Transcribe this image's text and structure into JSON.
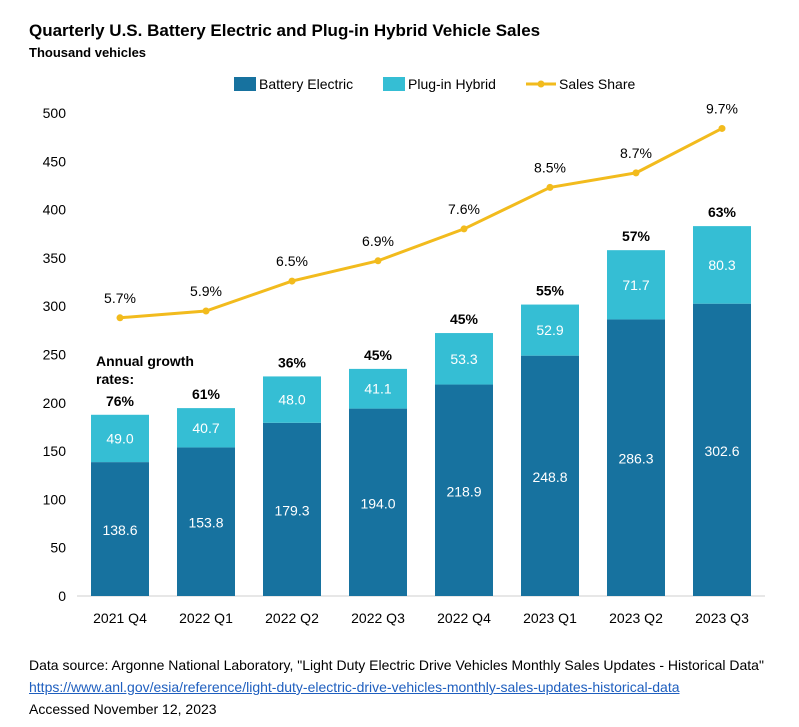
{
  "title": "Quarterly U.S. Battery Electric and Plug-in Hybrid Vehicle Sales",
  "subtitle": "Thousand vehicles",
  "colors": {
    "bev": "#17729f",
    "phev": "#35bed4",
    "share": "#f2bb1d",
    "axis": "#cfcfcf"
  },
  "chart_data": {
    "type": "bar",
    "stacked": true,
    "categories": [
      "2021 Q4",
      "2022 Q1",
      "2022 Q2",
      "2022 Q3",
      "2022 Q4",
      "2023 Q1",
      "2023 Q2",
      "2023 Q3"
    ],
    "series": [
      {
        "name": "Battery Electric",
        "values": [
          138.6,
          153.8,
          179.3,
          194.0,
          218.9,
          248.8,
          286.3,
          302.6
        ],
        "labels": [
          "138.6",
          "153.8",
          "179.3",
          "194.0",
          "218.9",
          "248.8",
          "286.3",
          "302.6"
        ]
      },
      {
        "name": "Plug-in Hybrid",
        "values": [
          49.0,
          40.7,
          48.0,
          41.1,
          53.3,
          52.9,
          71.7,
          80.3
        ],
        "labels": [
          "49.0",
          "40.7",
          "48.0",
          "41.1",
          "53.3",
          "52.9",
          "71.7",
          "80.3"
        ]
      }
    ],
    "line_series": {
      "name": "Sales Share",
      "values": [
        5.7,
        5.9,
        6.5,
        6.9,
        7.6,
        8.5,
        8.7,
        9.7
      ],
      "labels": [
        "5.7%",
        "5.9%",
        "6.5%",
        "6.9%",
        "7.6%",
        "8.5%",
        "8.7%",
        "9.7%"
      ],
      "plot_as_thousand_vehicles": [
        288,
        295,
        326,
        347,
        380,
        423,
        438,
        484
      ]
    },
    "growth_label": "Annual growth rates:",
    "growth_rates": [
      "76%",
      "61%",
      "36%",
      "45%",
      "45%",
      "55%",
      "57%",
      "63%"
    ],
    "y_ticks": [
      0,
      50,
      100,
      150,
      200,
      250,
      300,
      350,
      400,
      450,
      500
    ],
    "ylim": [
      0,
      500
    ],
    "legend_position": "top"
  },
  "footer": {
    "source": "Data source: Argonne National Laboratory, \"Light Duty Electric Drive Vehicles Monthly Sales Updates - Historical Data\"",
    "url": "https://www.anl.gov/esia/reference/light-duty-electric-drive-vehicles-monthly-sales-updates-historical-data",
    "accessed": "Accessed November 12, 2023"
  }
}
